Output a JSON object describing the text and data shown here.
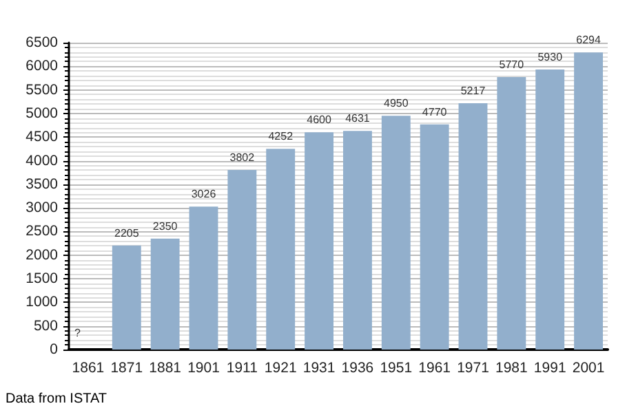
{
  "chart_data": {
    "type": "bar",
    "categories": [
      "1861",
      "1871",
      "1881",
      "1901",
      "1911",
      "1921",
      "1931",
      "1936",
      "1951",
      "1961",
      "1971",
      "1981",
      "1991",
      "2001"
    ],
    "values": [
      null,
      2205,
      2350,
      3026,
      3802,
      4252,
      4600,
      4631,
      4950,
      4770,
      5217,
      5770,
      5930,
      6294
    ],
    "value_labels": [
      "?",
      "2205",
      "2350",
      "3026",
      "3802",
      "4252",
      "4600",
      "4631",
      "4950",
      "4770",
      "5217",
      "5770",
      "5930",
      "6294"
    ],
    "color": "#92afcc",
    "ylim": [
      0,
      6500
    ],
    "yticks": [
      0,
      500,
      1000,
      1500,
      2000,
      2500,
      3000,
      3500,
      4000,
      4500,
      5000,
      5500,
      6000,
      6500
    ],
    "grid": "y",
    "annotations": [
      "Data from ISTAT"
    ]
  }
}
